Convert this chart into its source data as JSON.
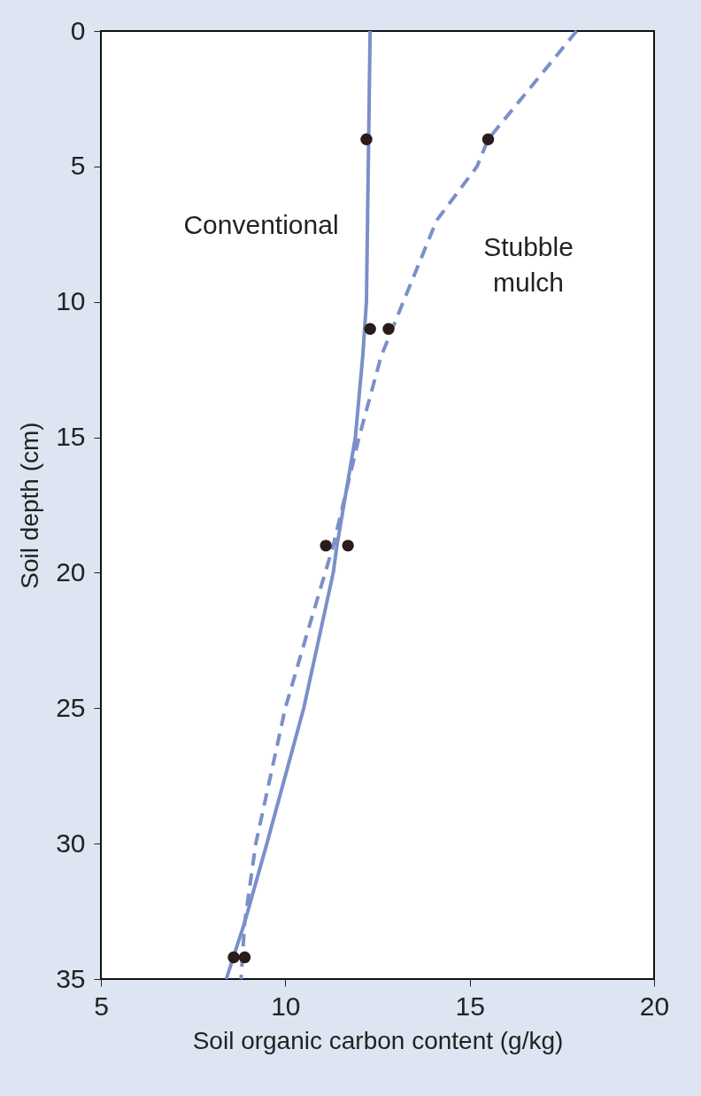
{
  "chart_data": {
    "type": "line",
    "xlabel": "Soil organic carbon content (g/kg)",
    "ylabel": "Soil depth (cm)",
    "xlim": [
      5,
      20
    ],
    "xticks": [
      5,
      10,
      15,
      20
    ],
    "ylim": [
      35,
      0
    ],
    "yticks": [
      0,
      5,
      10,
      15,
      20,
      25,
      30,
      35
    ],
    "grid": false,
    "series": [
      {
        "type": "line",
        "color": "#7b8fc8",
        "line_style": "solid",
        "marker": "none",
        "x": [
          12.3,
          12.2,
          12.1,
          11.9,
          11.4,
          11.3,
          10.5,
          9.5,
          8.9,
          8.4
        ],
        "values": [
          0,
          10,
          12,
          15,
          19,
          20,
          25,
          30,
          32.9,
          35
        ]
      },
      {
        "type": "line",
        "color": "#7b8fc8",
        "line_style": "dashed",
        "marker": "none",
        "x": [
          17.9,
          15.5,
          15.2,
          14.1,
          13.2,
          12.6,
          12.0,
          11.3,
          10.6,
          10.0,
          9.2,
          8.9,
          8.8
        ],
        "values": [
          0,
          4,
          5,
          7,
          10,
          12,
          15,
          19,
          22.2,
          25,
          30,
          32.9,
          35
        ]
      },
      {
        "type": "scatter",
        "color": "#2a1c1c",
        "marker": "circle",
        "x": [
          12.2,
          15.5,
          12.3,
          12.8,
          11.1,
          11.7,
          8.6,
          8.9
        ],
        "values": [
          4,
          4,
          11,
          11,
          19,
          19,
          34.2,
          34.2
        ]
      }
    ],
    "annotations": [
      "Conventional",
      "Stubble mulch"
    ]
  }
}
